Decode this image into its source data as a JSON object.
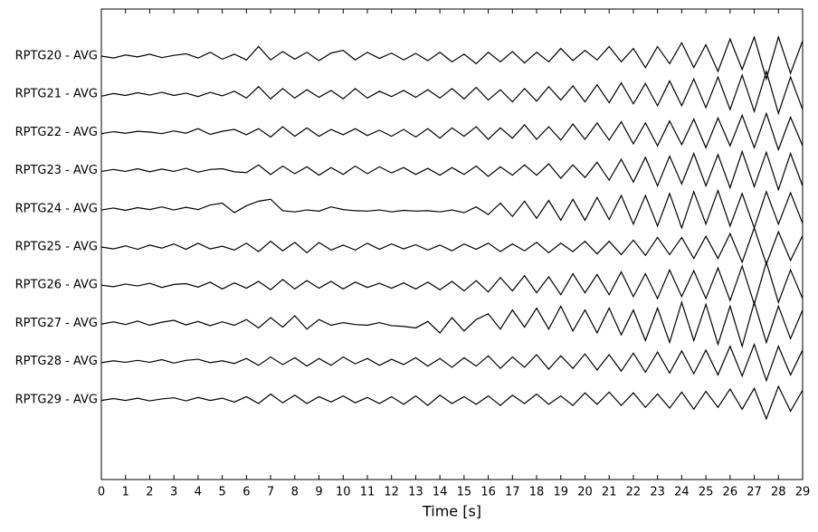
{
  "chart_data": {
    "type": "line",
    "xlabel": "Time [s]",
    "color": "#000000",
    "x": [
      0,
      0.5,
      1,
      1.5,
      2,
      2.5,
      3,
      3.5,
      4,
      4.5,
      5,
      5.5,
      6,
      6.5,
      7,
      7.5,
      8,
      8.5,
      9,
      9.5,
      10,
      10.5,
      11,
      11.5,
      12,
      12.5,
      13,
      13.5,
      14,
      14.5,
      15,
      15.5,
      16,
      16.5,
      17,
      17.5,
      18,
      18.5,
      19,
      19.5,
      20,
      20.5,
      21,
      21.5,
      22,
      22.5,
      23,
      23.5,
      24,
      24.5,
      25,
      25.5,
      26,
      26.5,
      27,
      27.5,
      28,
      28.5,
      29
    ],
    "xlim": [
      0,
      29
    ],
    "xticks": [
      0,
      1,
      2,
      3,
      4,
      5,
      6,
      7,
      8,
      9,
      10,
      11,
      12,
      13,
      14,
      15,
      16,
      17,
      18,
      19,
      20,
      21,
      22,
      23,
      24,
      25,
      26,
      27,
      28,
      29
    ],
    "series": [
      {
        "name": "RPTG20 - AVG",
        "values": [
          0,
          -0.05,
          0.03,
          -0.02,
          0.05,
          -0.04,
          0.02,
          0.06,
          -0.05,
          0.1,
          -0.08,
          0.05,
          -0.1,
          0.25,
          -0.1,
          0.12,
          -0.08,
          0.1,
          -0.12,
          0.08,
          0.15,
          -0.1,
          0.1,
          -0.06,
          0.08,
          -0.1,
          0.07,
          -0.12,
          0.1,
          -0.15,
          0.05,
          -0.2,
          0.1,
          -0.15,
          0.12,
          -0.18,
          0.1,
          -0.15,
          0.2,
          -0.12,
          0.15,
          -0.1,
          0.25,
          -0.15,
          0.2,
          -0.3,
          0.25,
          -0.2,
          0.35,
          -0.3,
          0.3,
          -0.4,
          0.45,
          -0.35,
          0.5,
          -0.6,
          0.5,
          -0.45,
          0.4
        ]
      },
      {
        "name": "RPTG21 - AVG",
        "values": [
          -0.05,
          0.02,
          -0.03,
          0.04,
          -0.02,
          0.05,
          -0.03,
          0.03,
          -0.06,
          0.05,
          -0.04,
          0.08,
          -0.1,
          0.2,
          -0.12,
          0.15,
          -0.1,
          0.12,
          -0.08,
          0.1,
          -0.12,
          0.15,
          -0.1,
          0.08,
          -0.06,
          0.1,
          -0.08,
          0.12,
          -0.1,
          0.15,
          -0.12,
          0.18,
          -0.15,
          0.12,
          -0.2,
          0.15,
          -0.18,
          0.2,
          -0.15,
          0.22,
          -0.2,
          0.25,
          -0.22,
          0.3,
          -0.25,
          0.28,
          -0.3,
          0.35,
          -0.3,
          0.4,
          -0.35,
          0.45,
          -0.4,
          0.5,
          -0.45,
          0.6,
          -0.5,
          0.45,
          -0.4
        ]
      },
      {
        "name": "RPTG22 - AVG",
        "values": [
          -0.03,
          0.02,
          -0.02,
          0.03,
          0.01,
          -0.03,
          0.04,
          -0.02,
          0.1,
          -0.05,
          0.03,
          0.08,
          -0.06,
          0.1,
          -0.12,
          0.15,
          -0.1,
          0.12,
          -0.1,
          0.08,
          -0.06,
          0.1,
          -0.08,
          0.06,
          -0.1,
          0.08,
          -0.12,
          0.1,
          -0.15,
          0.12,
          -0.1,
          0.15,
          -0.18,
          0.12,
          -0.15,
          0.2,
          -0.18,
          0.15,
          -0.2,
          0.22,
          -0.18,
          0.25,
          -0.2,
          0.28,
          -0.3,
          0.25,
          -0.35,
          0.3,
          -0.32,
          0.35,
          -0.4,
          0.38,
          -0.35,
          0.45,
          -0.4,
          0.5,
          -0.45,
          0.4,
          -0.35
        ]
      },
      {
        "name": "RPTG23 - AVG",
        "values": [
          -0.02,
          0.03,
          -0.02,
          0.05,
          -0.03,
          0.04,
          -0.02,
          0.06,
          -0.04,
          0.03,
          0.05,
          -0.03,
          -0.05,
          0.15,
          -0.1,
          0.12,
          -0.08,
          0.1,
          -0.12,
          0.08,
          -0.1,
          0.12,
          -0.08,
          0.1,
          -0.06,
          0.08,
          -0.1,
          0.06,
          -0.12,
          0.08,
          -0.1,
          0.12,
          -0.15,
          0.1,
          -0.12,
          0.15,
          -0.12,
          0.18,
          -0.2,
          0.15,
          -0.18,
          0.22,
          -0.25,
          0.3,
          -0.3,
          0.35,
          -0.4,
          0.38,
          -0.35,
          0.45,
          -0.4,
          0.42,
          -0.45,
          0.5,
          -0.42,
          0.48,
          -0.5,
          0.45,
          -0.4
        ]
      },
      {
        "name": "RPTG24 - AVG",
        "values": [
          -0.03,
          0.02,
          -0.04,
          0.03,
          -0.02,
          0.05,
          -0.03,
          0.04,
          -0.02,
          0.1,
          0.15,
          -0.1,
          0.08,
          0.2,
          0.25,
          -0.05,
          -0.08,
          -0.03,
          -0.06,
          0.05,
          -0.02,
          -0.05,
          -0.06,
          -0.03,
          -0.08,
          -0.04,
          -0.06,
          -0.05,
          -0.08,
          -0.03,
          -0.1,
          0.05,
          -0.15,
          0.15,
          -0.2,
          0.2,
          -0.25,
          0.22,
          -0.3,
          0.25,
          -0.3,
          0.3,
          -0.28,
          0.35,
          -0.4,
          0.35,
          -0.45,
          0.4,
          -0.5,
          0.45,
          -0.4,
          0.48,
          -0.45,
          0.4,
          -0.5,
          0.45,
          -0.4,
          0.42,
          -0.38
        ]
      },
      {
        "name": "RPTG25 - AVG",
        "values": [
          0,
          -0.05,
          0.03,
          -0.06,
          0.05,
          -0.03,
          0.08,
          -0.06,
          0.1,
          -0.05,
          0.02,
          -0.08,
          0.1,
          -0.12,
          0.15,
          -0.1,
          0.12,
          -0.15,
          0.12,
          -0.08,
          0.05,
          -0.08,
          0.1,
          -0.06,
          0.08,
          -0.05,
          0.06,
          -0.08,
          0.05,
          -0.1,
          0.08,
          -0.06,
          0.1,
          -0.12,
          0.08,
          -0.1,
          0.12,
          -0.15,
          0.1,
          -0.12,
          0.15,
          -0.18,
          0.15,
          -0.2,
          0.18,
          -0.22,
          0.25,
          -0.2,
          0.25,
          -0.3,
          0.28,
          -0.3,
          0.35,
          -0.4,
          0.5,
          -0.45,
          0.4,
          -0.35,
          0.3
        ]
      },
      {
        "name": "RPTG26 - AVG",
        "values": [
          0,
          -0.04,
          0.03,
          -0.02,
          0.05,
          -0.06,
          0.02,
          0.04,
          -0.05,
          0.08,
          -0.1,
          0.06,
          -0.08,
          0.1,
          -0.12,
          0.15,
          -0.1,
          0.12,
          -0.08,
          0.1,
          -0.1,
          0.08,
          -0.06,
          0.05,
          -0.08,
          0.06,
          -0.1,
          0.08,
          -0.12,
          0.1,
          -0.15,
          0.12,
          -0.18,
          0.2,
          -0.15,
          0.25,
          -0.2,
          0.22,
          -0.25,
          0.3,
          -0.2,
          0.28,
          -0.25,
          0.35,
          -0.3,
          0.3,
          -0.35,
          0.4,
          -0.3,
          0.38,
          -0.35,
          0.45,
          -0.4,
          0.5,
          -0.5,
          0.6,
          -0.45,
          0.4,
          -0.35
        ]
      },
      {
        "name": "RPTG27 - AVG",
        "values": [
          -0.02,
          0.04,
          -0.03,
          0.06,
          -0.05,
          0.03,
          0.08,
          -0.04,
          0.05,
          -0.06,
          0.04,
          -0.05,
          0.1,
          -0.12,
          0.15,
          -0.1,
          0.2,
          -0.15,
          0.1,
          -0.05,
          0.02,
          -0.03,
          -0.05,
          0.02,
          -0.06,
          -0.08,
          -0.12,
          0.05,
          -0.25,
          0.15,
          -0.2,
          0.1,
          0.25,
          -0.15,
          0.35,
          -0.1,
          0.4,
          -0.15,
          0.45,
          -0.2,
          0.35,
          -0.25,
          0.4,
          -0.3,
          0.35,
          -0.45,
          0.4,
          -0.5,
          0.55,
          -0.45,
          0.5,
          -0.55,
          0.45,
          -0.6,
          0.55,
          -0.5,
          0.45,
          -0.4,
          0.35
        ]
      },
      {
        "name": "RPTG28 - AVG",
        "values": [
          -0.03,
          0.02,
          -0.02,
          0.03,
          -0.02,
          0.05,
          -0.04,
          0.03,
          0.06,
          -0.03,
          0.02,
          -0.05,
          0.08,
          -0.1,
          0.12,
          -0.08,
          0.1,
          -0.12,
          0.08,
          -0.1,
          0.12,
          -0.06,
          0.08,
          -0.1,
          0.06,
          -0.08,
          0.1,
          -0.12,
          0.08,
          -0.15,
          0.1,
          -0.12,
          0.15,
          -0.18,
          0.12,
          -0.15,
          0.18,
          -0.2,
          0.15,
          -0.18,
          0.2,
          -0.22,
          0.18,
          -0.25,
          0.22,
          -0.28,
          0.25,
          -0.3,
          0.28,
          -0.32,
          0.3,
          -0.35,
          0.4,
          -0.38,
          0.45,
          -0.5,
          0.4,
          -0.35,
          0.3
        ]
      },
      {
        "name": "RPTG29 - AVG",
        "values": [
          -0.02,
          0.03,
          -0.02,
          0.04,
          -0.03,
          0.02,
          0.05,
          -0.03,
          0.06,
          -0.02,
          0.04,
          -0.06,
          0.08,
          -0.1,
          0.15,
          -0.08,
          0.12,
          -0.1,
          0.08,
          -0.06,
          0.1,
          -0.08,
          0.06,
          -0.1,
          0.08,
          -0.12,
          0.1,
          -0.15,
          0.12,
          -0.1,
          0.08,
          -0.12,
          0.1,
          -0.15,
          0.12,
          -0.1,
          0.15,
          -0.12,
          0.1,
          -0.15,
          0.18,
          -0.12,
          0.2,
          -0.15,
          0.18,
          -0.2,
          0.15,
          -0.22,
          0.2,
          -0.25,
          0.22,
          -0.2,
          0.28,
          -0.25,
          0.3,
          -0.5,
          0.35,
          -0.3,
          0.25
        ]
      }
    ]
  }
}
